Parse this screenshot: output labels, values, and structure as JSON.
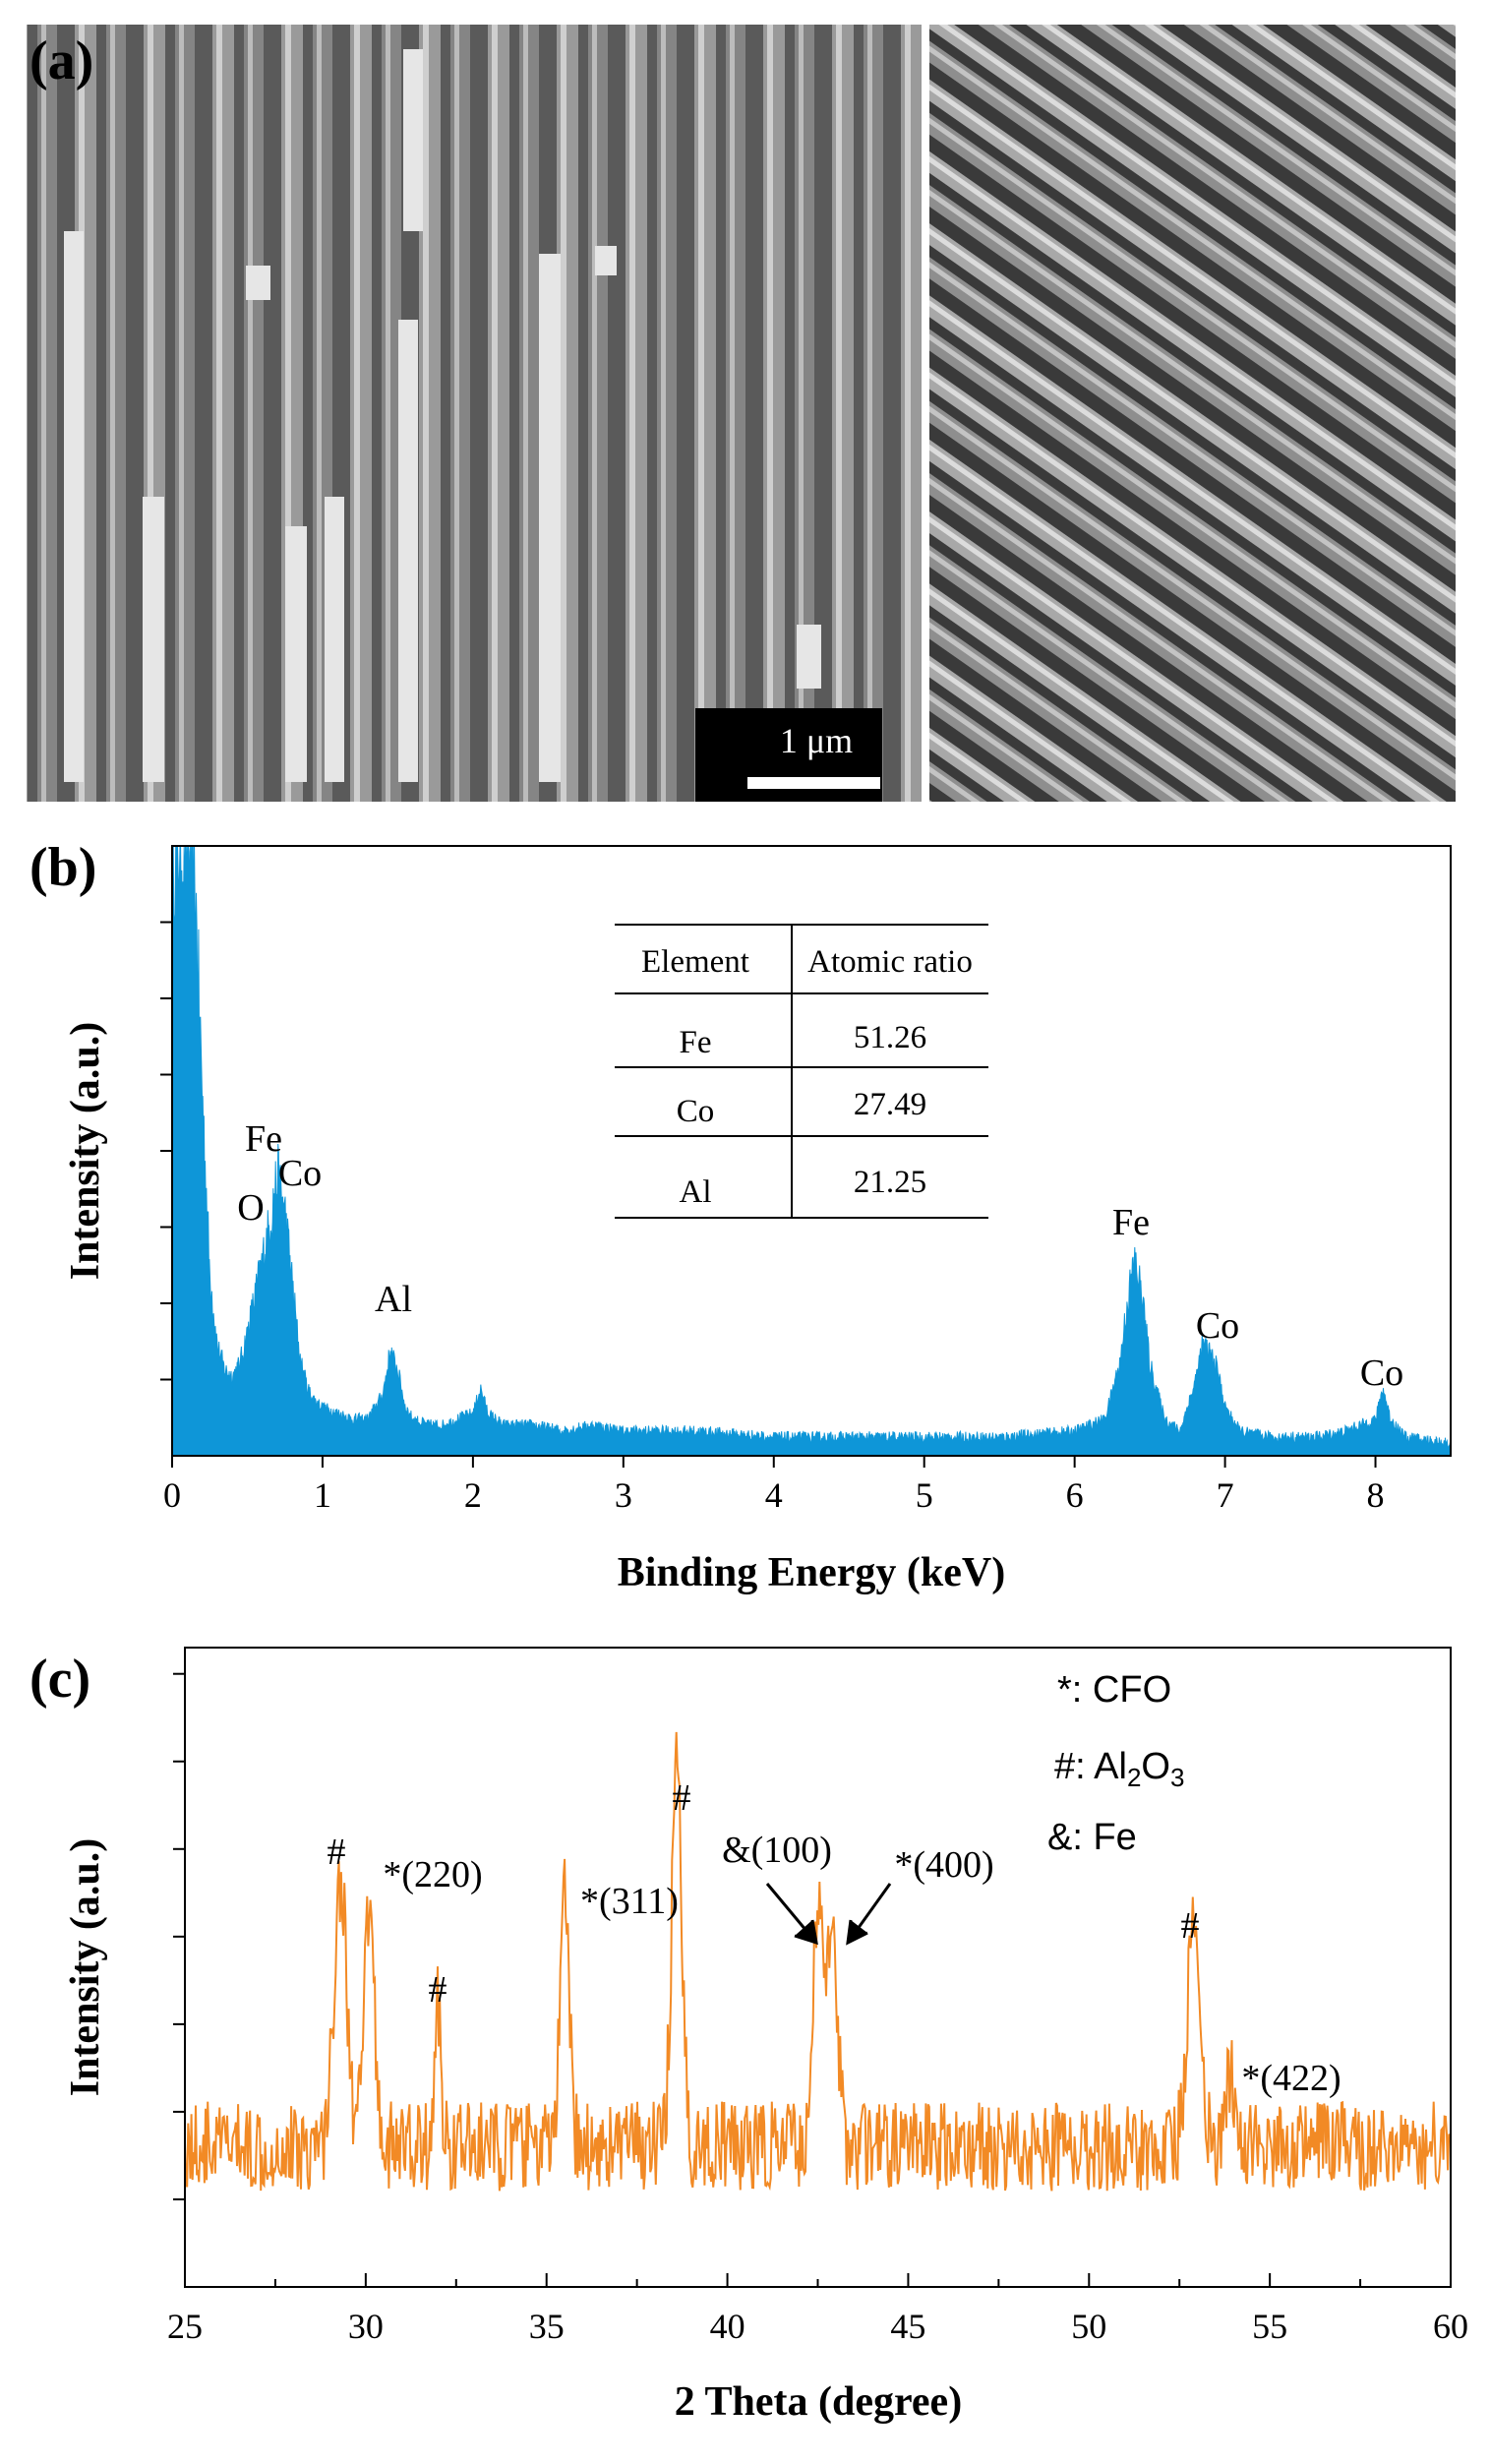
{
  "colors": {
    "eds_fill": "#0E96D8",
    "xrd_line": "#F28A25",
    "sem_bg": "#6f6f6f"
  },
  "panel_a": {
    "label": "(a)",
    "scale_bar": "1 μm"
  },
  "chart_data": [
    {
      "type": "area",
      "label": "(b)",
      "title": "",
      "xlabel": "Binding Energy (keV)",
      "ylabel": "Intensity (a.u.)",
      "xlim": [
        0,
        8.5
      ],
      "ylim": [
        0,
        100
      ],
      "xticks": [
        0,
        1,
        2,
        3,
        4,
        5,
        6,
        7,
        8
      ],
      "x": [
        0,
        0.05,
        0.1,
        0.15,
        0.2,
        0.25,
        0.3,
        0.35,
        0.4,
        0.45,
        0.5,
        0.55,
        0.6,
        0.65,
        0.7,
        0.75,
        0.8,
        0.85,
        0.9,
        0.95,
        1.0,
        1.1,
        1.2,
        1.3,
        1.4,
        1.45,
        1.5,
        1.55,
        1.6,
        1.7,
        1.8,
        1.9,
        2.0,
        2.05,
        2.1,
        2.2,
        2.4,
        2.6,
        2.8,
        3.0,
        3.5,
        4.0,
        4.5,
        5.0,
        5.5,
        6.0,
        6.2,
        6.3,
        6.35,
        6.4,
        6.45,
        6.5,
        6.6,
        6.7,
        6.8,
        6.85,
        6.9,
        6.95,
        7.0,
        7.1,
        7.3,
        7.6,
        7.8,
        8.0,
        8.05,
        8.1,
        8.2,
        8.5
      ],
      "series": [
        {
          "name": "EDS spectrum",
          "values": [
            100,
            100,
            100,
            95,
            60,
            30,
            18,
            14,
            13,
            15,
            20,
            26,
            32,
            38,
            46,
            40,
            28,
            16,
            11,
            9,
            8,
            7,
            6,
            6,
            10,
            17,
            14,
            8,
            6,
            5,
            5,
            6,
            7,
            11,
            7,
            5,
            5,
            4,
            5,
            4,
            4,
            3,
            3,
            3,
            3,
            4,
            6,
            15,
            25,
            32,
            26,
            15,
            6,
            4,
            12,
            18,
            17,
            14,
            8,
            4,
            3,
            3,
            4,
            6,
            11,
            6,
            3,
            2
          ]
        }
      ],
      "annotations": [
        {
          "text": "Fe",
          "x": 0.62
        },
        {
          "text": "O",
          "x": 0.53
        },
        {
          "text": "Co",
          "x": 0.85
        },
        {
          "text": "Al",
          "x": 1.47
        },
        {
          "text": "Fe",
          "x": 6.4
        },
        {
          "text": "Co",
          "x": 6.95
        },
        {
          "text": "Co",
          "x": 8.05
        }
      ],
      "inset_table": {
        "headers": [
          "Element",
          "Atomic ratio"
        ],
        "rows": [
          [
            "Fe",
            "51.26"
          ],
          [
            "Co",
            "27.49"
          ],
          [
            "Al",
            "21.25"
          ]
        ]
      }
    },
    {
      "type": "line",
      "label": "(c)",
      "title": "",
      "xlabel": "2 Theta (degree)",
      "ylabel": "Intensity (a.u.)",
      "xlim": [
        25,
        60
      ],
      "ylim": [
        0,
        100
      ],
      "xticks": [
        25,
        30,
        35,
        40,
        45,
        50,
        55,
        60
      ],
      "series": [
        {
          "name": "XRD pattern",
          "baseline": 22,
          "noise": 7,
          "peaks": [
            {
              "center": 29.3,
              "height": 42,
              "width": 0.25
            },
            {
              "center": 30.1,
              "height": 37,
              "width": 0.2
            },
            {
              "center": 32.0,
              "height": 22,
              "width": 0.12
            },
            {
              "center": 35.5,
              "height": 38,
              "width": 0.18
            },
            {
              "center": 38.6,
              "height": 58,
              "width": 0.2
            },
            {
              "center": 42.5,
              "height": 36,
              "width": 0.2
            },
            {
              "center": 42.9,
              "height": 37,
              "width": 0.2
            },
            {
              "center": 52.9,
              "height": 36,
              "width": 0.25
            },
            {
              "center": 53.9,
              "height": 12,
              "width": 0.15
            }
          ]
        }
      ],
      "annotations": [
        {
          "text": "#",
          "x": 29.2
        },
        {
          "text": "*(220)",
          "x": 31.0
        },
        {
          "text": "#",
          "x": 32.0
        },
        {
          "text": "*(311)",
          "x": 35.0
        },
        {
          "text": "#",
          "x": 38.6
        },
        {
          "text": "&(100)",
          "x": 42.5
        },
        {
          "text": "*(400)",
          "x": 44.3
        },
        {
          "text": "#",
          "x": 53.0
        },
        {
          "text": "*(422)",
          "x": 55.3
        }
      ],
      "legend": [
        {
          "symbol": "*",
          "text": ": CFO"
        },
        {
          "symbol": "#",
          "text": ": Al",
          "sub": "2",
          "mid": "O",
          "sub2": "3"
        },
        {
          "symbol": "&",
          "text": ": Fe"
        }
      ]
    }
  ]
}
